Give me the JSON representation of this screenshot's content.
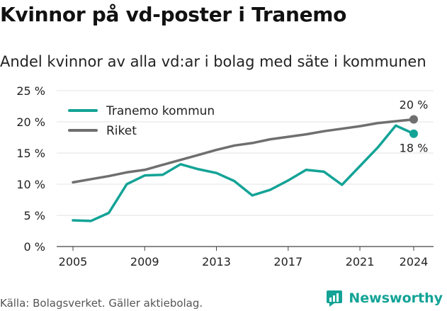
{
  "title": "Kvinnor på vd-poster i Tranemo",
  "subtitle": "Andel kvinnor av alla vd:ar i bolag med säte i kommunen",
  "footer": "Källa: Bolagsverket. Gäller aktiebolag.",
  "brand": {
    "name": "Newsworthy",
    "icon": "newsworthy-logo-icon",
    "color": "#13a396"
  },
  "chart_data": {
    "type": "line",
    "x": [
      2005,
      2006,
      2007,
      2008,
      2009,
      2010,
      2011,
      2012,
      2013,
      2014,
      2015,
      2016,
      2017,
      2018,
      2019,
      2020,
      2021,
      2022,
      2023,
      2024
    ],
    "xlim": [
      2005,
      2024
    ],
    "xticks": [
      2005,
      2009,
      2013,
      2017,
      2021,
      2024
    ],
    "ylim": [
      0,
      25
    ],
    "yticks": [
      {
        "value": 0,
        "label": "0 %"
      },
      {
        "value": 5,
        "label": "5 %"
      },
      {
        "value": 10,
        "label": "10 %"
      },
      {
        "value": 15,
        "label": "15 %"
      },
      {
        "value": 20,
        "label": "20 %"
      },
      {
        "value": 25,
        "label": "25 %"
      }
    ],
    "grid": true,
    "legend_position": "top-left",
    "series": [
      {
        "name": "Tranemo kommun",
        "color": "#13a396",
        "values": [
          4.2,
          4.1,
          5.4,
          10.0,
          11.4,
          11.5,
          13.2,
          12.4,
          11.8,
          10.5,
          8.2,
          9.1,
          10.6,
          12.3,
          12.0,
          9.9,
          12.9,
          15.9,
          19.4,
          18.1
        ],
        "end_label": "18 %"
      },
      {
        "name": "Riket",
        "color": "#6f6f6f",
        "values": [
          10.3,
          10.8,
          11.3,
          11.9,
          12.3,
          13.1,
          13.9,
          14.7,
          15.5,
          16.2,
          16.6,
          17.2,
          17.6,
          18.0,
          18.5,
          18.9,
          19.3,
          19.8,
          20.1,
          20.4
        ],
        "end_label": "20 %"
      }
    ]
  }
}
